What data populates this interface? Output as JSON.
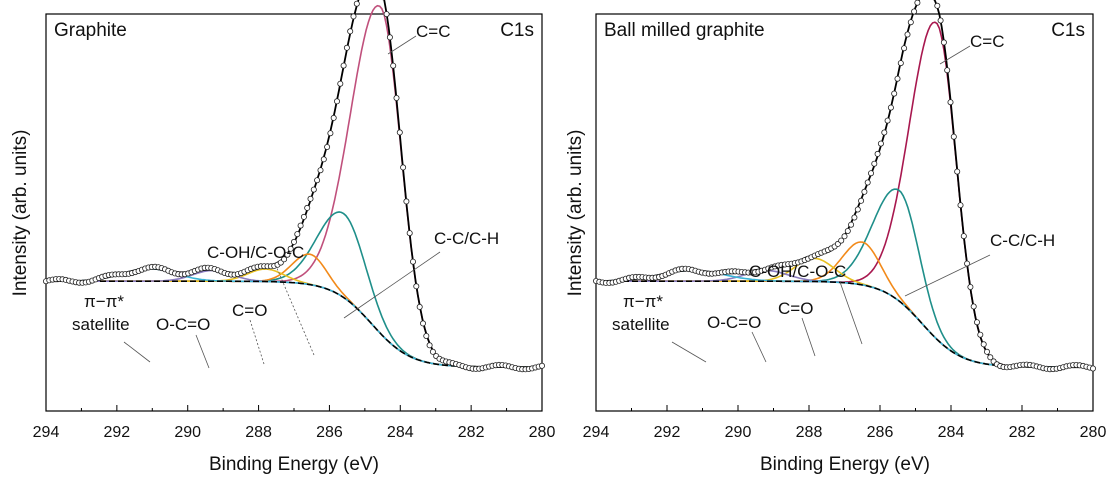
{
  "chart_data": [
    {
      "type": "line",
      "title": "Graphite",
      "annotation_region": "C1s",
      "xlabel": "Binding Energy (eV)",
      "ylabel": "Intensity (arb. units)",
      "xlim": [
        294,
        280
      ],
      "x_reversed": true,
      "xticks": [
        294,
        292,
        290,
        288,
        286,
        284,
        282,
        280
      ],
      "yticks_shown": false,
      "grid": false,
      "background": 0.33,
      "peaks": [
        {
          "label": "C=C",
          "center": 284.55,
          "height": 0.915,
          "width_low": 0.58,
          "width_high": 0.82,
          "color": "#c0507c"
        },
        {
          "label": "C-C/C-H",
          "center": 285.6,
          "height": 0.235,
          "width_low": 0.62,
          "width_high": 0.72,
          "color": "#1f8f8a"
        },
        {
          "label": "C-OH/C-O-C",
          "center": 286.55,
          "height": 0.085,
          "width_low": 0.45,
          "width_high": 0.5,
          "color": "#f28a1a"
        },
        {
          "label": "C=O",
          "center": 287.8,
          "height": 0.035,
          "width_low": 0.5,
          "width_high": 0.5,
          "color": "#e8c020"
        },
        {
          "label": "O-C=O",
          "center": 289.3,
          "height": 0.03,
          "width_low": 0.55,
          "width_high": 0.55,
          "color": "#8a7cc0"
        },
        {
          "label": "π−π* satellite",
          "label_lines": [
            "π−π*",
            "satellite"
          ],
          "center": 291.1,
          "height": 0.035,
          "width_low": 0.75,
          "width_high": 0.75,
          "color": "#3ab4d6"
        }
      ],
      "labels": [
        {
          "text": "C=C",
          "peak": "C=C"
        },
        {
          "text": "C-C/C-H",
          "peak": "C-C/C-H"
        },
        {
          "text": "C-OH/C-O-C",
          "peak": "C-OH/C-O-C"
        },
        {
          "text": "C=O",
          "peak": "C=O"
        },
        {
          "text": "O-C=O",
          "peak": "O-C=O"
        },
        {
          "text": "π−π*",
          "peak": "satellite-line1"
        },
        {
          "text": "satellite",
          "peak": "satellite-line2"
        }
      ]
    },
    {
      "type": "line",
      "title": "Ball milled graphite",
      "annotation_region": "C1s",
      "xlabel": "Binding Energy (eV)",
      "ylabel": "Intensity (arb. units)",
      "xlim": [
        294,
        280
      ],
      "x_reversed": true,
      "xticks": [
        294,
        292,
        290,
        288,
        286,
        284,
        282,
        280
      ],
      "yticks_shown": false,
      "grid": false,
      "background": 0.33,
      "peaks": [
        {
          "label": "C=C",
          "center": 284.4,
          "height": 0.885,
          "width_low": 0.55,
          "width_high": 0.75,
          "color": "#a8184f"
        },
        {
          "label": "C-C/C-H",
          "center": 285.45,
          "height": 0.31,
          "width_low": 0.55,
          "width_high": 0.72,
          "color": "#1f8f8a"
        },
        {
          "label": "C-OH/C-O-C",
          "center": 286.5,
          "height": 0.12,
          "width_low": 0.5,
          "width_high": 0.55,
          "color": "#f28a1a"
        },
        {
          "label": "C=O",
          "center": 287.85,
          "height": 0.065,
          "width_low": 0.55,
          "width_high": 0.55,
          "color": "#e8c020"
        },
        {
          "label": "O-C=O",
          "center": 289.2,
          "height": 0.03,
          "width_low": 0.6,
          "width_high": 0.6,
          "color": "#8a7cc0"
        },
        {
          "label": "π−π* satellite",
          "label_lines": [
            "π−π*",
            "satellite"
          ],
          "center": 291.3,
          "height": 0.03,
          "width_low": 0.9,
          "width_high": 0.9,
          "color": "#3ab4d6"
        }
      ],
      "labels": [
        {
          "text": "C=C"
        },
        {
          "text": "C-C/C-H"
        },
        {
          "text": "C-OH/C-O-C"
        },
        {
          "text": "C=O"
        },
        {
          "text": "O-C=O"
        },
        {
          "text": "π−π*"
        },
        {
          "text": "satellite"
        }
      ]
    }
  ],
  "colors": {
    "experimental_points": "#ffffff",
    "envelope": "#000000",
    "background_line": "#000000"
  }
}
